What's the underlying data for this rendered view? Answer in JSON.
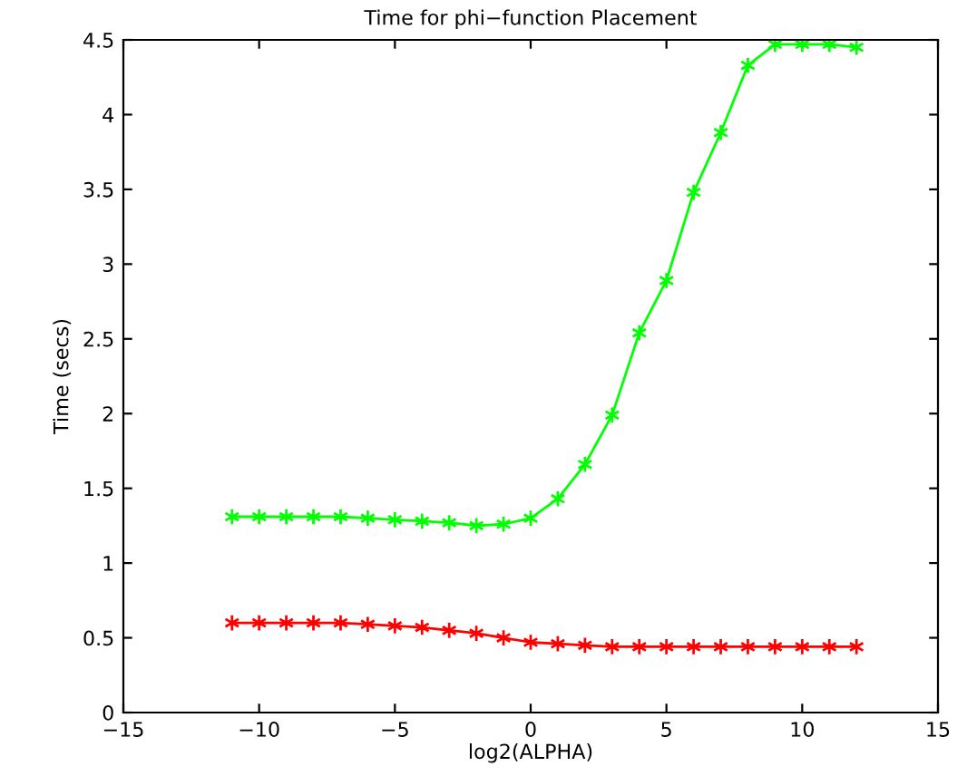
{
  "chart_data": {
    "type": "line",
    "title": "Time for phi−function Placement",
    "xlabel": "log2(ALPHA)",
    "ylabel": "Time (secs)",
    "x": [
      -11,
      -10,
      -9,
      -8,
      -7,
      -6,
      -5,
      -4,
      -3,
      -2,
      -1,
      0,
      1,
      2,
      3,
      4,
      5,
      6,
      7,
      8,
      9,
      10,
      11,
      12
    ],
    "series": [
      {
        "color": "#00ff00",
        "values": [
          1.31,
          1.31,
          1.31,
          1.31,
          1.31,
          1.3,
          1.29,
          1.28,
          1.27,
          1.25,
          1.26,
          1.3,
          1.43,
          1.66,
          1.99,
          2.54,
          2.89,
          3.48,
          3.88,
          4.33,
          4.47,
          4.47,
          4.47,
          4.45
        ]
      },
      {
        "color": "#ff0000",
        "values": [
          0.6,
          0.6,
          0.6,
          0.6,
          0.6,
          0.59,
          0.58,
          0.57,
          0.55,
          0.53,
          0.5,
          0.47,
          0.46,
          0.45,
          0.44,
          0.44,
          0.44,
          0.44,
          0.44,
          0.44,
          0.44,
          0.44,
          0.44,
          0.44
        ]
      }
    ],
    "xlim": [
      -15,
      15
    ],
    "xticks": [
      {
        "value": -15,
        "label": "−15"
      },
      {
        "value": -10,
        "label": "−10"
      },
      {
        "value": -5,
        "label": "−5"
      },
      0,
      5,
      10,
      15
    ],
    "ylim": [
      0,
      4.5
    ],
    "yticks": [
      0,
      0.5,
      1,
      1.5,
      2,
      2.5,
      3,
      3.5,
      4,
      4.5
    ],
    "marker": "cross",
    "grid": false,
    "legend": false
  }
}
